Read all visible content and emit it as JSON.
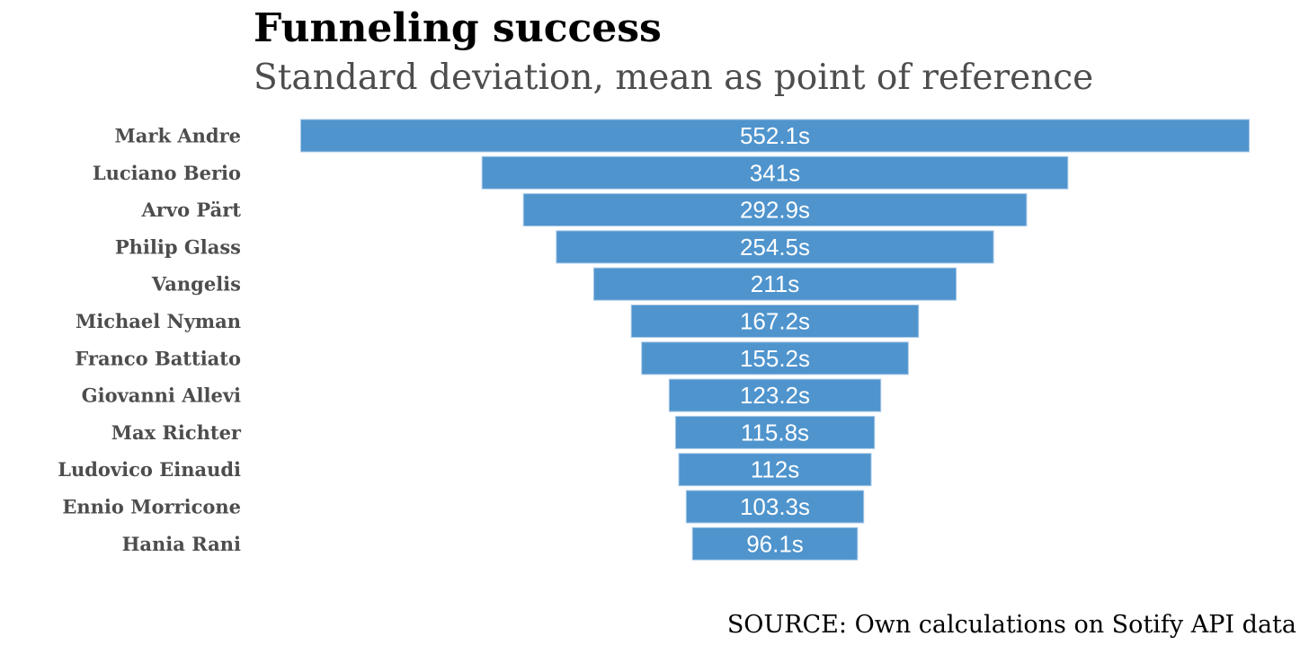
{
  "chart_data": {
    "type": "bar",
    "orientation": "horizontal-funnel",
    "title": "Funneling success",
    "subtitle": "Standard deviation, mean as point of reference",
    "categories": [
      "Mark Andre",
      "Luciano Berio",
      "Arvo Pärt",
      "Philip Glass",
      "Vangelis",
      "Michael Nyman",
      "Franco Battiato",
      "Giovanni Allevi",
      "Max Richter",
      "Ludovico Einaudi",
      "Ennio Morricone",
      "Hania Rani"
    ],
    "values": [
      552.1,
      341,
      292.9,
      254.5,
      211,
      167.2,
      155.2,
      123.2,
      115.8,
      112,
      103.3,
      96.1
    ],
    "value_labels": [
      "552.1s",
      "341s",
      "292.9s",
      "254.5s",
      "211s",
      "167.2s",
      "155.2s",
      "123.2s",
      "115.8s",
      "112s",
      "103.3s",
      "96.1s"
    ],
    "unit": "s",
    "bar_color": "#4f94cd",
    "grid": false,
    "legend": "none",
    "source": "SOURCE: Own calculations on Sotify API data"
  }
}
